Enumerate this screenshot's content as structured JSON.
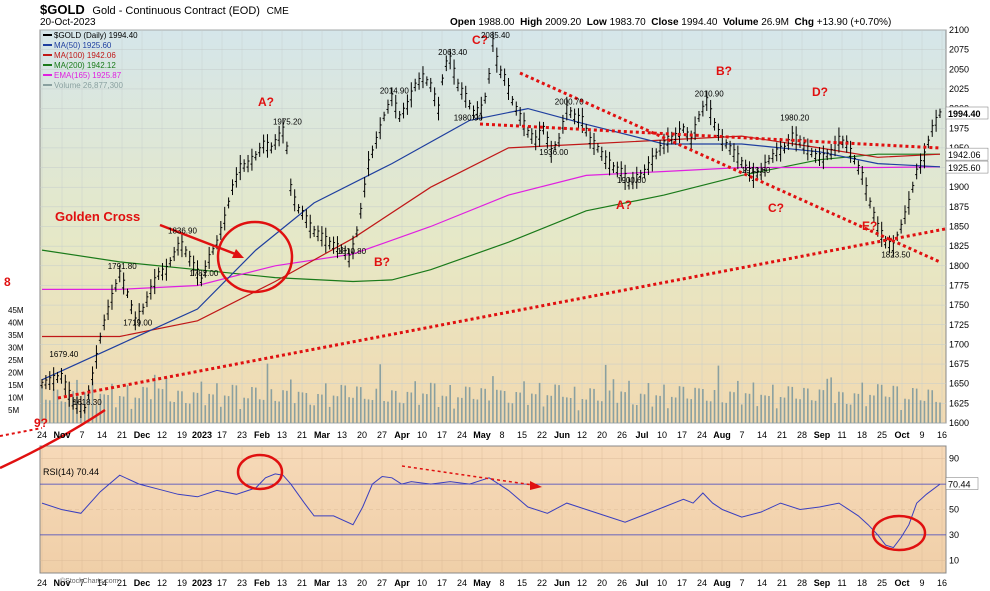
{
  "header": {
    "symbol": "$GOLD",
    "name": "Gold - Continuous Contract (EOD)",
    "exchange": "CME",
    "date": "20-Oct-2023",
    "open_label": "Open",
    "open": "1988.00",
    "high_label": "High",
    "high": "2009.20",
    "low_label": "Low",
    "low": "1983.70",
    "close_label": "Close",
    "close": "1994.40",
    "volume_label": "Volume",
    "volume": "26.9M",
    "chg_label": "Chg",
    "chg": "+13.90 (+0.70%)",
    "watermark": "©StockCharts.com"
  },
  "colors": {
    "price_bars": "#000000",
    "ma50": "#1f3f9f",
    "ma100": "#c01818",
    "ma200": "#1a7a1a",
    "ema165": "#e020e0",
    "volume": "#8aa0a0",
    "rsi": "#3a3fbf",
    "annotation": "#e01010",
    "bg_top": "#d5e6ea",
    "bg_bottom": "#f2d9b0"
  },
  "chart_data": [
    {
      "type": "line",
      "title": "$GOLD (Daily) 1994.40",
      "ylim": [
        1600,
        2100
      ],
      "y_ticks": [
        1600,
        1625,
        1650,
        1675,
        1700,
        1725,
        1750,
        1775,
        1800,
        1825,
        1850,
        1875,
        1900,
        1925,
        1950,
        1975,
        2000,
        2025,
        2050,
        2075,
        2100
      ],
      "x_tick_labels": [
        "24",
        "Nov",
        "7",
        "14",
        "21",
        "Dec",
        "12",
        "19",
        "2023",
        "17",
        "23",
        "Feb",
        "13",
        "21",
        "Mar",
        "13",
        "20",
        "27",
        "Apr",
        "10",
        "17",
        "24",
        "May",
        "8",
        "15",
        "22",
        "Jun",
        "12",
        "20",
        "26",
        "Jul",
        "10",
        "17",
        "24",
        "Aug",
        "7",
        "14",
        "21",
        "28",
        "Sep",
        "11",
        "18",
        "25",
        "Oct",
        "9",
        "16"
      ],
      "legend": [
        {
          "label": "$GOLD (Daily) 1994.40"
        },
        {
          "label": "MA(50) 1925.60"
        },
        {
          "label": "MA(100) 1942.06"
        },
        {
          "label": "MA(200) 1942.12"
        },
        {
          "label": "EMA(165) 1925.87"
        },
        {
          "label": "Volume 26,877,300"
        }
      ],
      "price_path": [
        [
          0,
          1650
        ],
        [
          10,
          1660
        ],
        [
          16,
          1625
        ],
        [
          22,
          1618
        ],
        [
          26,
          1660
        ],
        [
          31,
          1720
        ],
        [
          36,
          1760
        ],
        [
          40,
          1790
        ],
        [
          44,
          1765
        ],
        [
          48,
          1730
        ],
        [
          52,
          1745
        ],
        [
          56,
          1770
        ],
        [
          60,
          1790
        ],
        [
          64,
          1795
        ],
        [
          68,
          1815
        ],
        [
          71,
          1830
        ],
        [
          74,
          1818
        ],
        [
          78,
          1800
        ],
        [
          82,
          1782
        ],
        [
          86,
          1810
        ],
        [
          90,
          1830
        ],
        [
          94,
          1860
        ],
        [
          98,
          1900
        ],
        [
          102,
          1925
        ],
        [
          106,
          1930
        ],
        [
          110,
          1940
        ],
        [
          114,
          1955
        ],
        [
          118,
          1950
        ],
        [
          122,
          1965
        ],
        [
          125,
          1975
        ],
        [
          128,
          1900
        ],
        [
          131,
          1875
        ],
        [
          135,
          1865
        ],
        [
          139,
          1845
        ],
        [
          143,
          1840
        ],
        [
          147,
          1830
        ],
        [
          151,
          1825
        ],
        [
          155,
          1820
        ],
        [
          158,
          1810
        ],
        [
          161,
          1830
        ],
        [
          164,
          1870
        ],
        [
          168,
          1930
        ],
        [
          172,
          1960
        ],
        [
          176,
          1990
        ],
        [
          180,
          2015
        ],
        [
          184,
          1990
        ],
        [
          188,
          2005
        ],
        [
          192,
          2030
        ],
        [
          196,
          2040
        ],
        [
          200,
          2030
        ],
        [
          204,
          2000
        ],
        [
          207,
          2055
        ],
        [
          210,
          2063
        ],
        [
          214,
          2030
        ],
        [
          218,
          2015
        ],
        [
          222,
          1995
        ],
        [
          226,
          2000
        ],
        [
          229,
          2020
        ],
        [
          232,
          2085
        ],
        [
          235,
          2050
        ],
        [
          238,
          2040
        ],
        [
          242,
          2010
        ],
        [
          246,
          1990
        ],
        [
          250,
          1970
        ],
        [
          254,
          1960
        ],
        [
          258,
          1975
        ],
        [
          262,
          1945
        ],
        [
          266,
          1960
        ],
        [
          270,
          2000
        ],
        [
          274,
          1990
        ],
        [
          278,
          1985
        ],
        [
          282,
          1960
        ],
        [
          286,
          1950
        ],
        [
          290,
          1935
        ],
        [
          294,
          1925
        ],
        [
          298,
          1920
        ],
        [
          302,
          1905
        ],
        [
          306,
          1912
        ],
        [
          310,
          1920
        ],
        [
          314,
          1935
        ],
        [
          318,
          1950
        ],
        [
          322,
          1960
        ],
        [
          326,
          1965
        ],
        [
          330,
          1975
        ],
        [
          334,
          1960
        ],
        [
          338,
          1990
        ],
        [
          342,
          2010
        ],
        [
          346,
          1980
        ],
        [
          350,
          1960
        ],
        [
          354,
          1950
        ],
        [
          358,
          1938
        ],
        [
          362,
          1925
        ],
        [
          366,
          1915
        ],
        [
          370,
          1920
        ],
        [
          374,
          1935
        ],
        [
          378,
          1945
        ],
        [
          382,
          1950
        ],
        [
          386,
          1965
        ],
        [
          390,
          1958
        ],
        [
          394,
          1948
        ],
        [
          398,
          1940
        ],
        [
          402,
          1938
        ],
        [
          406,
          1945
        ],
        [
          410,
          1960
        ],
        [
          414,
          1955
        ],
        [
          418,
          1935
        ],
        [
          422,
          1915
        ],
        [
          426,
          1880
        ],
        [
          430,
          1850
        ],
        [
          434,
          1830
        ],
        [
          438,
          1825
        ],
        [
          442,
          1850
        ],
        [
          446,
          1880
        ],
        [
          450,
          1920
        ],
        [
          454,
          1940
        ],
        [
          458,
          1975
        ],
        [
          462,
          1994
        ]
      ],
      "ma50_path": [
        [
          0,
          1655
        ],
        [
          40,
          1700
        ],
        [
          80,
          1745
        ],
        [
          110,
          1820
        ],
        [
          140,
          1880
        ],
        [
          180,
          1930
        ],
        [
          220,
          1985
        ],
        [
          250,
          2000
        ],
        [
          280,
          1980
        ],
        [
          320,
          1955
        ],
        [
          360,
          1955
        ],
        [
          400,
          1945
        ],
        [
          430,
          1930
        ],
        [
          462,
          1926
        ]
      ],
      "ma100_path": [
        [
          0,
          1710
        ],
        [
          40,
          1710
        ],
        [
          80,
          1730
        ],
        [
          120,
          1780
        ],
        [
          160,
          1835
        ],
        [
          200,
          1900
        ],
        [
          240,
          1950
        ],
        [
          280,
          1955
        ],
        [
          320,
          1960
        ],
        [
          360,
          1965
        ],
        [
          400,
          1950
        ],
        [
          430,
          1938
        ],
        [
          462,
          1942
        ]
      ],
      "ma200_path": [
        [
          0,
          1820
        ],
        [
          40,
          1805
        ],
        [
          80,
          1795
        ],
        [
          120,
          1785
        ],
        [
          160,
          1780
        ],
        [
          180,
          1782
        ],
        [
          200,
          1795
        ],
        [
          240,
          1830
        ],
        [
          280,
          1870
        ],
        [
          320,
          1890
        ],
        [
          360,
          1915
        ],
        [
          400,
          1935
        ],
        [
          430,
          1942
        ],
        [
          462,
          1942
        ]
      ],
      "ema165_path": [
        [
          0,
          1770
        ],
        [
          40,
          1770
        ],
        [
          80,
          1775
        ],
        [
          120,
          1800
        ],
        [
          160,
          1815
        ],
        [
          200,
          1850
        ],
        [
          240,
          1890
        ],
        [
          280,
          1915
        ],
        [
          320,
          1920
        ],
        [
          360,
          1925
        ],
        [
          400,
          1925
        ],
        [
          430,
          1925
        ],
        [
          462,
          1926
        ]
      ],
      "volume_scale": [
        "45M",
        "40M",
        "35M",
        "30M",
        "25M",
        "20M",
        "15M",
        "10M",
        "5M"
      ],
      "price_labels": [
        {
          "text": "1679.40",
          "x": 10,
          "y": 1679
        },
        {
          "text": "1618.30",
          "x": 22,
          "y": 1618
        },
        {
          "text": "1791.80",
          "x": 40,
          "y": 1791
        },
        {
          "text": "1719.00",
          "x": 48,
          "y": 1719
        },
        {
          "text": "1836.90",
          "x": 71,
          "y": 1836
        },
        {
          "text": "1782.00",
          "x": 82,
          "y": 1782
        },
        {
          "text": "1975.20",
          "x": 125,
          "y": 1975
        },
        {
          "text": "1810.80",
          "x": 158,
          "y": 1810
        },
        {
          "text": "2014.90",
          "x": 180,
          "y": 2014
        },
        {
          "text": "2063.40",
          "x": 210,
          "y": 2063
        },
        {
          "text": "1980.90",
          "x": 218,
          "y": 1980
        },
        {
          "text": "2085.40",
          "x": 232,
          "y": 2085
        },
        {
          "text": "2000.70",
          "x": 270,
          "y": 2000
        },
        {
          "text": "1936.00",
          "x": 262,
          "y": 1936
        },
        {
          "text": "1900.60",
          "x": 302,
          "y": 1900
        },
        {
          "text": "2010.90",
          "x": 342,
          "y": 2010
        },
        {
          "text": "1913.60",
          "x": 366,
          "y": 1913
        },
        {
          "text": "1980.20",
          "x": 386,
          "y": 1980
        },
        {
          "text": "1823.50",
          "x": 438,
          "y": 1823
        }
      ],
      "right_labels": [
        "1994.40",
        "1942.06",
        "1925.60"
      ],
      "annotations": [
        "Golden Cross",
        "A?",
        "B?",
        "C?",
        "A?",
        "B?",
        "C?",
        "D?",
        "E?",
        "8",
        "9?"
      ]
    },
    {
      "type": "line",
      "title": "RSI(14) 70.44",
      "ylim": [
        0,
        100
      ],
      "y_ticks": [
        10,
        30,
        50,
        70,
        90
      ],
      "value_label": "70.44",
      "rsi": [
        [
          0,
          55
        ],
        [
          10,
          50
        ],
        [
          20,
          47
        ],
        [
          30,
          64
        ],
        [
          40,
          77
        ],
        [
          50,
          70
        ],
        [
          60,
          66
        ],
        [
          70,
          62
        ],
        [
          80,
          60
        ],
        [
          90,
          65
        ],
        [
          100,
          62
        ],
        [
          110,
          67
        ],
        [
          115,
          75
        ],
        [
          120,
          78
        ],
        [
          124,
          77
        ],
        [
          128,
          70
        ],
        [
          135,
          55
        ],
        [
          140,
          45
        ],
        [
          150,
          45
        ],
        [
          160,
          38
        ],
        [
          165,
          52
        ],
        [
          170,
          70
        ],
        [
          175,
          76
        ],
        [
          180,
          75
        ],
        [
          185,
          70
        ],
        [
          190,
          72
        ],
        [
          200,
          70
        ],
        [
          210,
          72
        ],
        [
          220,
          70
        ],
        [
          230,
          75
        ],
        [
          235,
          70
        ],
        [
          240,
          65
        ],
        [
          250,
          52
        ],
        [
          260,
          47
        ],
        [
          270,
          55
        ],
        [
          280,
          50
        ],
        [
          290,
          45
        ],
        [
          300,
          40
        ],
        [
          310,
          46
        ],
        [
          320,
          52
        ],
        [
          330,
          58
        ],
        [
          335,
          55
        ],
        [
          340,
          63
        ],
        [
          345,
          55
        ],
        [
          350,
          50
        ],
        [
          360,
          44
        ],
        [
          370,
          48
        ],
        [
          380,
          55
        ],
        [
          390,
          50
        ],
        [
          400,
          52
        ],
        [
          410,
          55
        ],
        [
          420,
          45
        ],
        [
          425,
          38
        ],
        [
          430,
          30
        ],
        [
          434,
          22
        ],
        [
          438,
          20
        ],
        [
          442,
          28
        ],
        [
          446,
          38
        ],
        [
          450,
          55
        ],
        [
          455,
          62
        ],
        [
          462,
          70
        ]
      ]
    }
  ]
}
